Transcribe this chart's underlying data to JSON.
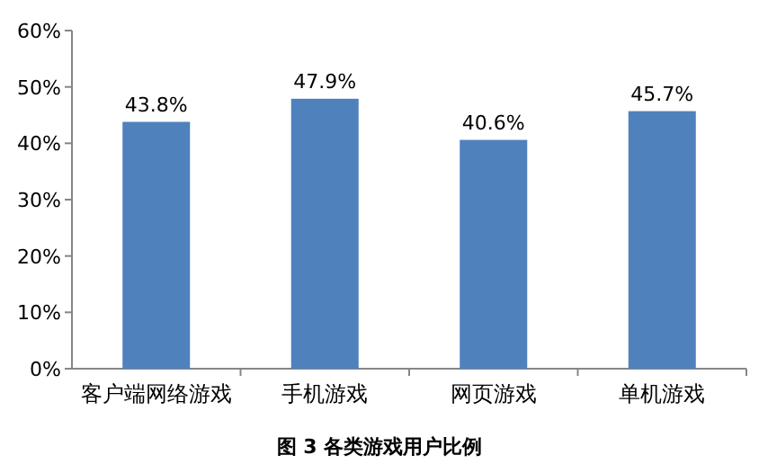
{
  "chart_data": {
    "type": "bar",
    "title": "图 3 各类游戏用户比例",
    "categories": [
      "客户端网络游戏",
      "手机游戏",
      "网页游戏",
      "单机游戏"
    ],
    "values": [
      43.8,
      47.9,
      40.6,
      45.7
    ],
    "value_labels": [
      "43.8%",
      "47.9%",
      "40.6%",
      "45.7%"
    ],
    "color": "#4f81bd",
    "ylim": [
      0,
      60
    ],
    "yticks": [
      {
        "value": 0,
        "label": "0%"
      },
      {
        "value": 10,
        "label": "10%"
      },
      {
        "value": 20,
        "label": "20%"
      },
      {
        "value": 30,
        "label": "30%"
      },
      {
        "value": 40,
        "label": "40%"
      },
      {
        "value": 50,
        "label": "50%"
      },
      {
        "value": 60,
        "label": "60%"
      }
    ],
    "grid": false
  }
}
